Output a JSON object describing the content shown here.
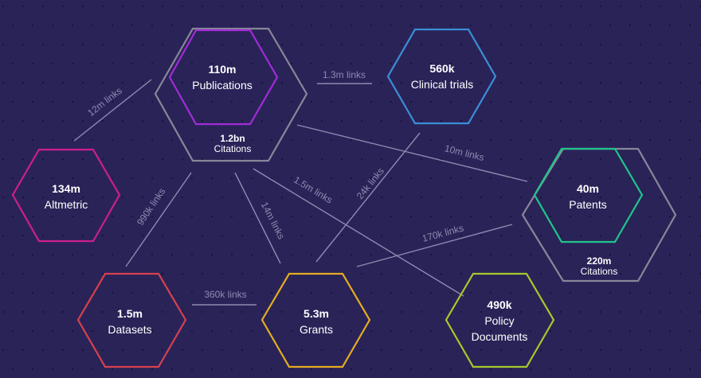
{
  "colors": {
    "background": "#2a2358",
    "line": "#8f8ab0",
    "citations_hex": "#8a8699",
    "publications": "#a12bd6",
    "clinical_trials": "#3a8fd8",
    "altmetric": "#cc1f8e",
    "patents": "#1fc58a",
    "datasets": "#d6414f",
    "grants": "#e3ad21",
    "policy_documents": "#a6c92b"
  },
  "nodes": {
    "publications": {
      "value": "110m",
      "label": "Publications",
      "citations_value": "1.2bn",
      "citations_label": "Citations"
    },
    "clinical_trials": {
      "value": "560k",
      "label": "Clinical trials"
    },
    "altmetric": {
      "value": "134m",
      "label": "Altmetric"
    },
    "patents": {
      "value": "40m",
      "label": "Patents",
      "citations_value": "220m",
      "citations_label": "Citations"
    },
    "datasets": {
      "value": "1.5m",
      "label": "Datasets"
    },
    "grants": {
      "value": "5.3m",
      "label": "Grants"
    },
    "policy_documents": {
      "value": "490k",
      "label_line1": "Policy",
      "label_line2": "Documents"
    }
  },
  "edges": {
    "publications_clinical": "1.3m links",
    "publications_altmetric": "12m links",
    "publications_patents": "10m links",
    "publications_datasets": "990k links",
    "publications_grants": "14m links",
    "publications_policy": "1.5m links",
    "clinical_grants": "24k links",
    "patents_grants": "170k links",
    "datasets_grants": "360k links"
  }
}
